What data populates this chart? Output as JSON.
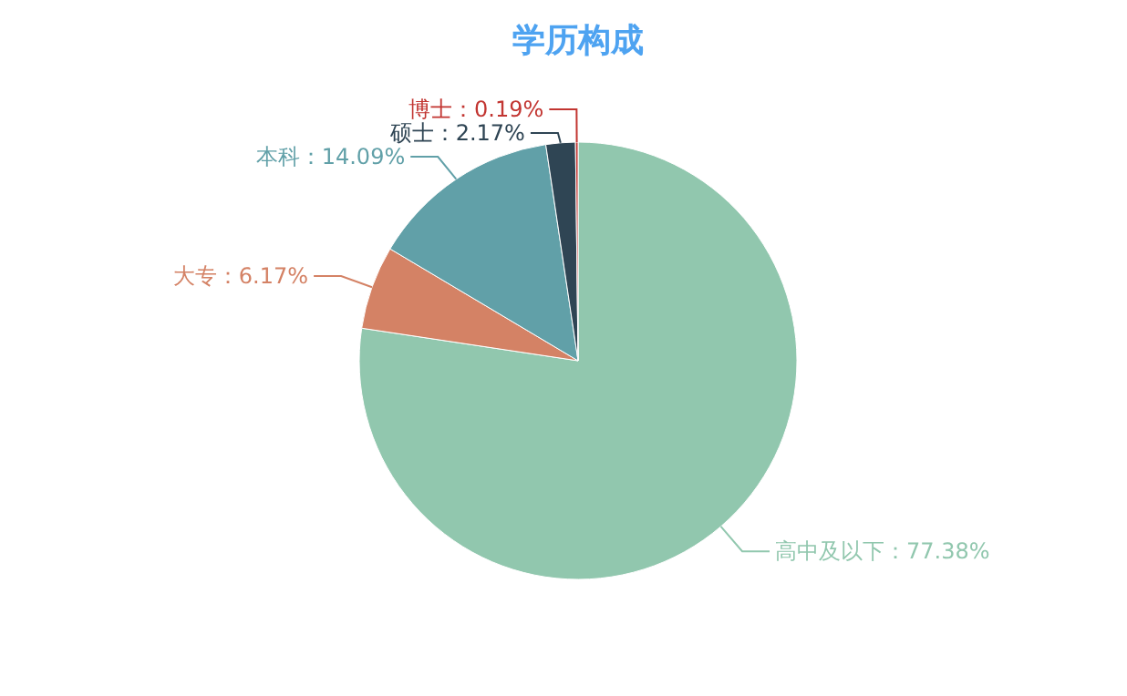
{
  "chart_data": {
    "type": "pie",
    "title": "学历构成",
    "categories": [
      "高中及以下",
      "大专",
      "本科",
      "硕士",
      "博士"
    ],
    "values": [
      77.38,
      6.17,
      14.09,
      2.17,
      0.19
    ],
    "colors": [
      "#91c7ae",
      "#d48265",
      "#61a0a8",
      "#2f4554",
      "#c23531"
    ],
    "value_labels": [
      "：77.38%",
      "：6.17%",
      "：14.09%",
      "：2.17%",
      "：0.19%"
    ]
  }
}
